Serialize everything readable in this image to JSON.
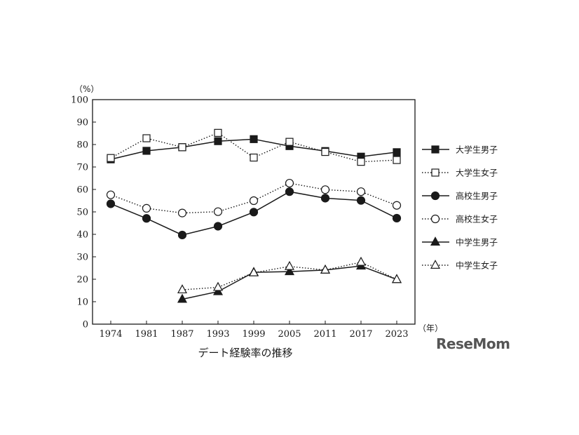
{
  "caption": "デート経験率の推移",
  "watermark": "ReseMom",
  "chart_data": {
    "type": "line",
    "title": "デート経験率の推移",
    "y_unit_label": "（%）",
    "x_unit_label": "（年）",
    "ylim": [
      0,
      100
    ],
    "y_ticks": [
      "100",
      "90",
      "80",
      "70",
      "60",
      "50",
      "40",
      "30",
      "20",
      "10",
      "0"
    ],
    "x": [
      "1974",
      "1981",
      "1987",
      "1993",
      "1999",
      "2005",
      "2011",
      "2017",
      "2023"
    ],
    "legend_position": "right",
    "series": [
      {
        "name": "大学生男子",
        "line": "solid",
        "marker": "square-filled",
        "values": [
          73.4,
          77.2,
          78.8,
          81.5,
          82.4,
          79.3,
          77.1,
          74.6,
          76.6
        ]
      },
      {
        "name": "大学生女子",
        "line": "dotted",
        "marker": "square-open",
        "values": [
          74.0,
          82.8,
          78.8,
          85.2,
          74.2,
          81.2,
          76.7,
          72.3,
          73.1
        ]
      },
      {
        "name": "高校生男子",
        "line": "solid",
        "marker": "circle-filled",
        "values": [
          53.6,
          47.1,
          39.7,
          43.6,
          49.9,
          59.0,
          56.1,
          55.1,
          47.2
        ]
      },
      {
        "name": "高校生女子",
        "line": "dotted",
        "marker": "circle-open",
        "values": [
          57.6,
          51.6,
          49.5,
          50.1,
          55.0,
          62.8,
          59.9,
          59.0,
          52.9
        ]
      },
      {
        "name": "中学生男子",
        "line": "solid",
        "marker": "triangle-filled",
        "values": [
          null,
          null,
          11.1,
          14.5,
          23.1,
          23.4,
          24.1,
          25.9,
          19.9
        ]
      },
      {
        "name": "中学生女子",
        "line": "dotted",
        "marker": "triangle-open",
        "values": [
          null,
          null,
          15.3,
          16.4,
          22.9,
          25.7,
          24.1,
          27.6,
          19.9
        ]
      }
    ]
  }
}
